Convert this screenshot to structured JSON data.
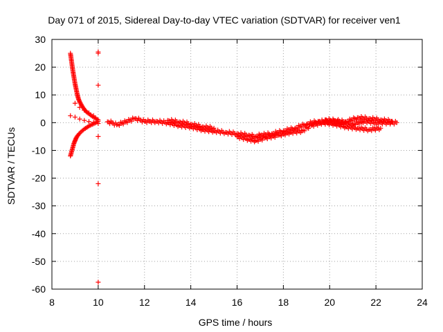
{
  "chart_data": {
    "type": "scatter",
    "title": "Day 071 of 2015, Sidereal Day-to-day VTEC variation (SDTVAR) for receiver ven1",
    "xlabel": "GPS time / hours",
    "ylabel": "SDTVAR / TECUs",
    "xlim": [
      8,
      24
    ],
    "ylim": [
      -60,
      30
    ],
    "xticks": [
      8,
      10,
      12,
      14,
      16,
      18,
      20,
      22,
      24
    ],
    "yticks": [
      -60,
      -50,
      -40,
      -30,
      -20,
      -10,
      0,
      10,
      20,
      30
    ],
    "grid": true,
    "marker": "+",
    "color": "#ff0000",
    "series": [
      {
        "name": "upper branch",
        "x": [
          8.8,
          8.85,
          8.9,
          8.95,
          9.0,
          9.05,
          9.1,
          9.15,
          9.2,
          9.3,
          9.4,
          9.5,
          9.6,
          9.7,
          9.8,
          9.9,
          10.0
        ],
        "y": [
          25,
          22,
          19,
          16.5,
          14,
          12,
          10,
          8.5,
          7.5,
          6,
          4.8,
          3.8,
          3.2,
          2.5,
          2.0,
          1.5,
          1.0
        ]
      },
      {
        "name": "lower branch",
        "x": [
          8.8,
          8.85,
          8.9,
          8.95,
          9.0,
          9.05,
          9.1,
          9.2,
          9.3,
          9.4,
          9.5,
          9.6,
          9.7,
          9.8,
          9.9,
          10.0
        ],
        "y": [
          -12,
          -10.5,
          -9,
          -7.5,
          -6.5,
          -5.5,
          -4.8,
          -3.8,
          -3,
          -2.3,
          -1.8,
          -1.2,
          -0.8,
          -0.4,
          0,
          0.5
        ]
      },
      {
        "name": "middle branches",
        "x": [
          8.8,
          9.0,
          9.2,
          9.4,
          9.6,
          9.8,
          10.0,
          9.0,
          9.2,
          9.4,
          9.6,
          9.8
        ],
        "y": [
          2.5,
          2.0,
          1.3,
          0.8,
          0.4,
          0.1,
          -0.3,
          7,
          5.5,
          4.5,
          3.5,
          2.5
        ]
      },
      {
        "name": "outliers",
        "x": [
          10.0,
          10.0,
          10.0,
          10.0,
          10.0,
          10.0
        ],
        "y": [
          25.5,
          25,
          13.5,
          -5,
          -22,
          -57.5
        ]
      },
      {
        "name": "main band",
        "x": [
          10.4,
          10.6,
          10.8,
          11.6,
          11.8,
          12.0,
          12.2,
          12.5,
          13.0,
          13.5,
          14.0,
          14.5,
          15.0,
          15.5,
          16.0,
          16.5,
          16.8,
          17.0,
          17.5,
          18.0,
          18.5,
          19.0,
          19.5,
          20.0,
          20.5,
          21.0,
          21.5,
          22.0,
          22.5,
          22.9
        ],
        "y": [
          0.3,
          0,
          -0.8,
          1.5,
          1.0,
          0.5,
          0.5,
          0.5,
          0,
          -1.0,
          -1.5,
          -2.5,
          -3.0,
          -3.5,
          -4.0,
          -4.5,
          -5.0,
          -4.5,
          -4.0,
          -3.0,
          -2.0,
          -0.5,
          0.5,
          0.5,
          0,
          -0.5,
          0.5,
          0,
          0,
          0
        ]
      },
      {
        "name": "lower band",
        "x": [
          16.0,
          16.5,
          16.8,
          17.2,
          17.8,
          18.3,
          18.8,
          19.2,
          19.7,
          20.2,
          20.7,
          21.2,
          21.7,
          22.2
        ],
        "y": [
          -5.0,
          -6.0,
          -6.5,
          -5.5,
          -4.5,
          -3.5,
          -3.0,
          -1.0,
          0,
          -0.5,
          -1.5,
          -2.0,
          -2.5,
          -2.0
        ]
      },
      {
        "name": "upper band",
        "x": [
          13.0,
          13.5,
          14.0,
          14.5,
          15.0,
          19.8,
          20.2,
          20.7,
          21.2,
          21.7,
          22.2,
          22.7
        ],
        "y": [
          0.8,
          0.3,
          -0.5,
          -1.5,
          -2.0,
          1.0,
          0.8,
          0.3,
          1.8,
          1.5,
          1.0,
          0.5
        ]
      }
    ]
  }
}
